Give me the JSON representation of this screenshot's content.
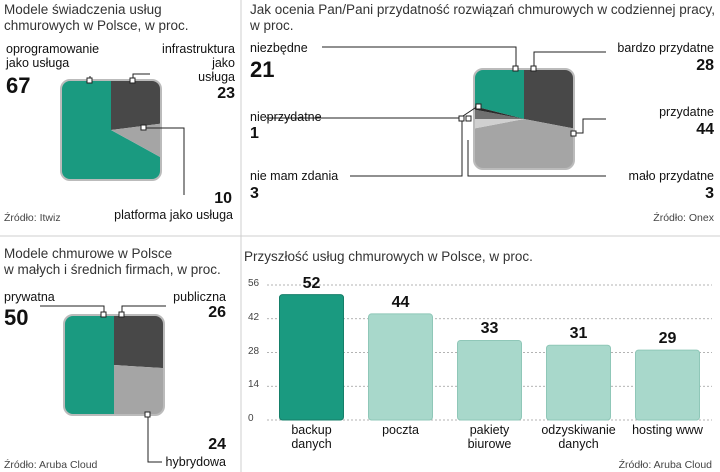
{
  "chart_data": [
    {
      "type": "pie",
      "title": "Modele  świadczenia usług chmurowych w Polsce, w proc.",
      "labels": [
        "oprogramowanie jako usługa",
        "infrastruktura jako usługa",
        "platforma jako usługa"
      ],
      "values": [
        67,
        23,
        10
      ],
      "colors": [
        "#1a9a80",
        "#484848",
        "#a5a5a5"
      ],
      "source": "Źródło: Itwiz"
    },
    {
      "type": "pie",
      "title": "Jak ocenia Pan/Pani przydatność rozwiązań chmurowych w codziennej pracy, w proc.",
      "labels": [
        "niezbędne",
        "bardzo przydatne",
        "przydatne",
        "mało przydatne",
        "nie mam zdania",
        "nieprzydatne"
      ],
      "values": [
        21,
        28,
        44,
        3,
        3,
        1
      ],
      "colors": [
        "#1a9a80",
        "#484848",
        "#a5a5a5",
        "#d0d0d0",
        "#707070",
        "#2a2a2a"
      ],
      "source": "Źródło: Onex"
    },
    {
      "type": "pie",
      "title": "Modele chmurowe w  Polsce w małych i średnich firmach, w proc.",
      "labels": [
        "prywatna",
        "publiczna",
        "hybrydowa"
      ],
      "values": [
        50,
        26,
        24
      ],
      "colors": [
        "#1a9a80",
        "#484848",
        "#a5a5a5"
      ],
      "source": "Źródło: Aruba Cloud"
    },
    {
      "type": "bar",
      "title": "Przyszłość usług chmurowych w Polsce, w proc.",
      "categories": [
        [
          "backup",
          "danych"
        ],
        [
          "poczta"
        ],
        [
          "pakiety",
          "biurowe"
        ],
        [
          "odzyskiwanie",
          "danych"
        ],
        [
          "hosting www"
        ]
      ],
      "values": [
        52,
        44,
        33,
        31,
        29
      ],
      "yticks": [
        0,
        14,
        28,
        42,
        56
      ],
      "ylim": [
        0,
        56
      ],
      "colors": [
        "#1a9a80",
        "#a8d8cb",
        "#a8d8cb",
        "#a8d8cb",
        "#a8d8cb"
      ],
      "source": "Źródło: Aruba Cloud"
    }
  ],
  "pie1": {
    "title_l1": "Modele  świadczenia usług",
    "title_l2": "chmurowych w Polsce, w proc.",
    "saas_l1": "oprogramowanie",
    "saas_l2": "jako usługa",
    "iaas_l1": "infrastruktura",
    "iaas_l2": "jako",
    "iaas_l3": "usługa",
    "paas": "platforma jako usługa"
  },
  "pie2": {
    "title_l1": "Jak ocenia Pan/Pani przydatność rozwiązań chmurowych w codziennej pracy,",
    "title_l2": "w proc."
  },
  "pie3": {
    "title_l1": "Modele chmurowe w  Polsce",
    "title_l2": "w małych i średnich firmach, w proc."
  }
}
